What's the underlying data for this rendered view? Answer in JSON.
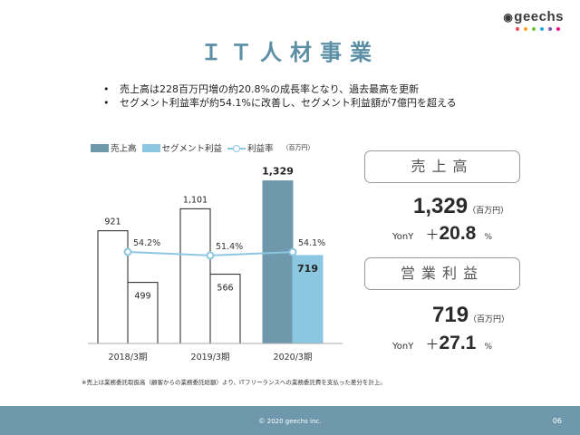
{
  "logo": {
    "text": "geechs"
  },
  "logo_dot_colors": [
    "#e84a5f",
    "#f5a623",
    "#7ac143",
    "#2fa8d8",
    "#7d5ba6",
    "#e4007f"
  ],
  "title": "ＩＴ人材事業",
  "bullets": [
    "売上高は228百万円増の約20.8%の成長率となり、過去最高を更新",
    "セグメント利益率が約54.1%に改善し、セグメント利益額が7億円を超える"
  ],
  "legend": {
    "sales": "売上高",
    "segment_profit": "セグメント利益",
    "margin": "利益率",
    "unit": "（百万円）"
  },
  "colors": {
    "sales_highlight": "#6f98ad",
    "profit_highlight": "#8cc7e2",
    "margin_line": "#8cc7e2",
    "title": "#5c8fa6",
    "footer": "#6f98ad"
  },
  "chart_data": {
    "type": "bar",
    "categories": [
      "2018/3期",
      "2019/3期",
      "2020/3期"
    ],
    "series": [
      {
        "name": "売上高",
        "values": [
          921,
          1101,
          1329
        ]
      },
      {
        "name": "セグメント利益",
        "values": [
          499,
          566,
          719
        ]
      },
      {
        "name": "利益率",
        "values": [
          54.2,
          51.4,
          54.1
        ]
      }
    ],
    "data_labels": {
      "sales": [
        "921",
        "1,101",
        "1,329"
      ],
      "profit": [
        "499",
        "566",
        "719"
      ],
      "margin": [
        "54.2%",
        "51.4%",
        "54.1%"
      ]
    },
    "highlight_category": "2020/3期",
    "ylim": [
      0,
      1400
    ],
    "grid": false,
    "legend_position": "top-left"
  },
  "kpi": {
    "sales": {
      "label": "売上高",
      "value": "1,329",
      "unit": "（百万円）",
      "yony_label": "YonY",
      "sign": "＋",
      "growth": "20.8",
      "pct": "%"
    },
    "profit": {
      "label": "営業利益",
      "value": "719",
      "unit": "（百万円）",
      "yony_label": "YonY",
      "sign": "＋",
      "growth": "27.1",
      "pct": "%"
    }
  },
  "footnote": "※売上は業務委託取扱高（顧客からの業務委託総額）より、ITフリーランスへの業務委託費を支払った差分を計上。",
  "footer": {
    "copyright": "© 2020 geechs inc.",
    "page": "06"
  }
}
